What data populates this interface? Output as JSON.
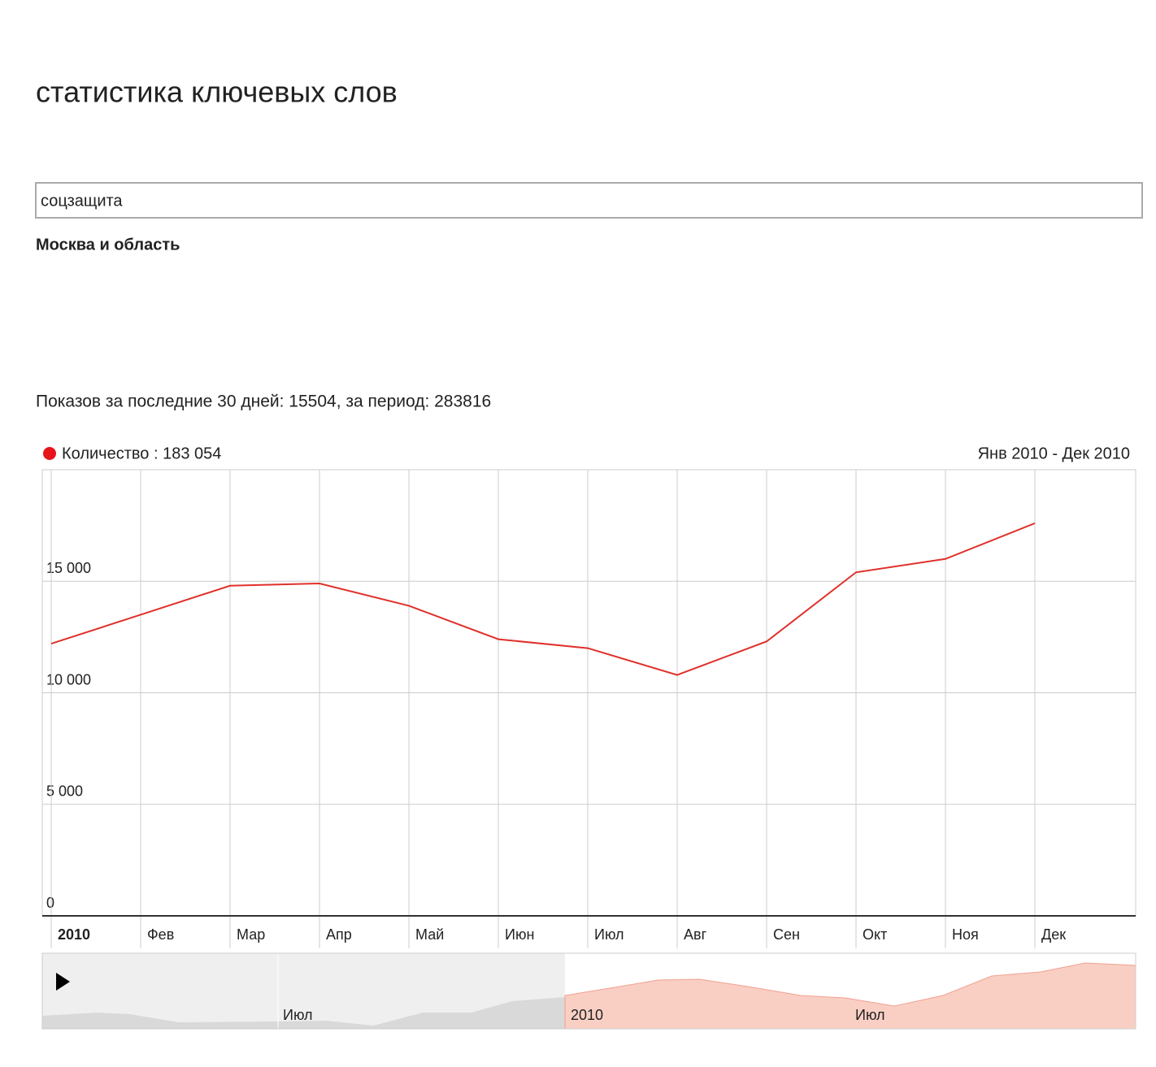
{
  "header": {
    "title": "статистика ключевых слов"
  },
  "search": {
    "query": "соцзащита",
    "region": "Москва и область"
  },
  "summary": "Показов за последние 30 дней: 15504, за период: 283816",
  "chart_data": {
    "type": "line",
    "legend": "Количество : 183 054",
    "range": "Янв 2010 - Дек 2010",
    "categories": [
      "2010",
      "Фев",
      "Мар",
      "Апр",
      "Май",
      "Июн",
      "Июл",
      "Авг",
      "Сен",
      "Окт",
      "Ноя",
      "Дек"
    ],
    "series": [
      {
        "color": "#e0302a",
        "values": [
          12200,
          13500,
          14800,
          14900,
          13900,
          12400,
          12000,
          10800,
          12300,
          15400,
          16000,
          17600
        ]
      }
    ],
    "ylim": [
      0,
      20000
    ],
    "yticks": [
      0,
      {
        "value": 5000,
        "label": "5 000"
      },
      {
        "value": 10000,
        "label": "10 000"
      },
      {
        "value": 15000,
        "label": "15 000"
      }
    ],
    "grid": true,
    "navigator_labels": [
      "Июл",
      "2010",
      "Июл"
    ]
  }
}
